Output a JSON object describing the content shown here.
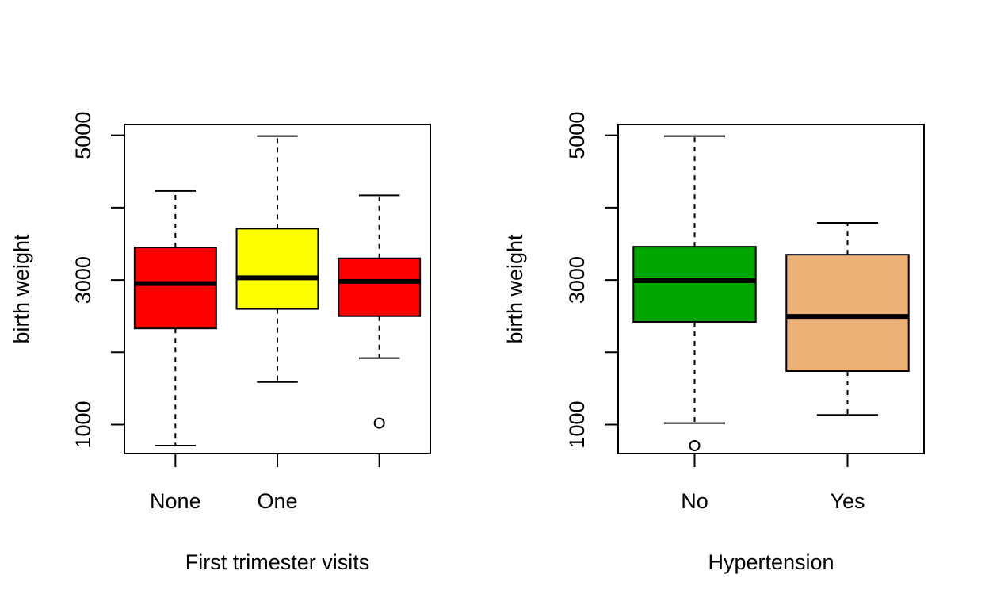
{
  "chart_data": [
    {
      "type": "boxplot",
      "xlabel": "First trimester visits",
      "ylabel": "birth weight",
      "ylim": [
        600,
        5150
      ],
      "yticks": [
        1000,
        2000,
        3000,
        4000,
        5000
      ],
      "ytick_labels": [
        "1000",
        "",
        "3000",
        "",
        "5000"
      ],
      "categories": [
        "None",
        "One",
        ""
      ],
      "boxes": [
        {
          "label": "None",
          "whisker_low": 709,
          "q1": 2330,
          "median": 2950,
          "q3": 3450,
          "whisker_high": 4230,
          "outliers": [],
          "color": "#ff0000"
        },
        {
          "label": "One",
          "whisker_low": 1590,
          "q1": 2600,
          "median": 3030,
          "q3": 3710,
          "whisker_high": 4990,
          "outliers": [],
          "color": "#ffff00"
        },
        {
          "label": "",
          "whisker_low": 1920,
          "q1": 2500,
          "median": 2980,
          "q3": 3300,
          "whisker_high": 4170,
          "outliers": [
            1021
          ],
          "color": "#ff0000"
        }
      ]
    },
    {
      "type": "boxplot",
      "xlabel": "Hypertension",
      "ylabel": "birth weight",
      "ylim": [
        600,
        5150
      ],
      "yticks": [
        1000,
        2000,
        3000,
        4000,
        5000
      ],
      "ytick_labels": [
        "1000",
        "",
        "3000",
        "",
        "5000"
      ],
      "categories": [
        "No",
        "Yes"
      ],
      "boxes": [
        {
          "label": "No",
          "whisker_low": 1021,
          "q1": 2420,
          "median": 2990,
          "q3": 3460,
          "whisker_high": 4990,
          "outliers": [
            709
          ],
          "color": "#00a600"
        },
        {
          "label": "Yes",
          "whisker_low": 1135,
          "q1": 1740,
          "median": 2495,
          "q3": 3350,
          "whisker_high": 3790,
          "outliers": [],
          "color": "#ecb176"
        }
      ]
    }
  ]
}
